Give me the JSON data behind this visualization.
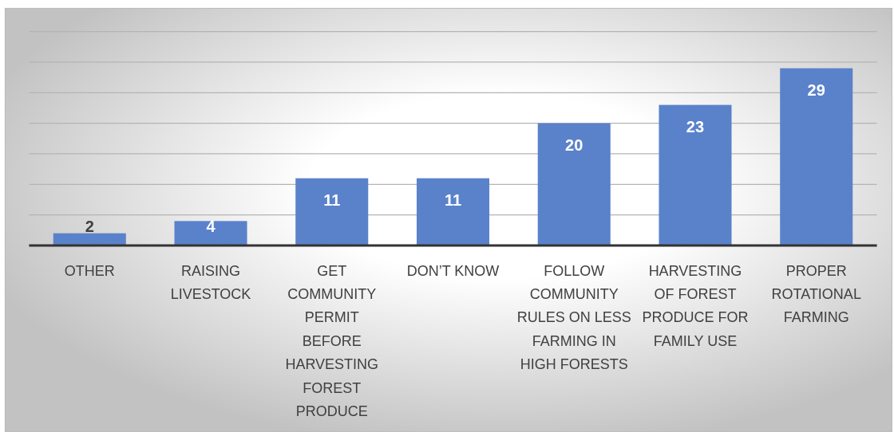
{
  "chart_data": {
    "type": "bar",
    "categories": [
      "OTHER",
      "RAISING LIVESTOCK",
      "GET COMMUNITY PERMIT BEFORE HARVESTING FOREST PRODUCE",
      "DON’T KNOW",
      "FOLLOW COMMUNITY RULES ON LESS FARMING IN HIGH FORESTS",
      "HARVESTING OF FOREST PRODUCE FOR FAMILY USE",
      "PROPER ROTATIONAL FARMING"
    ],
    "values": [
      2,
      4,
      11,
      11,
      20,
      23,
      29
    ],
    "color": "#5a82cb",
    "ylim": [
      0,
      35
    ],
    "yticks": [
      0,
      5,
      10,
      15,
      20,
      25,
      30,
      35
    ],
    "grid": "y",
    "tick_labels": "x",
    "data_labels": true
  }
}
